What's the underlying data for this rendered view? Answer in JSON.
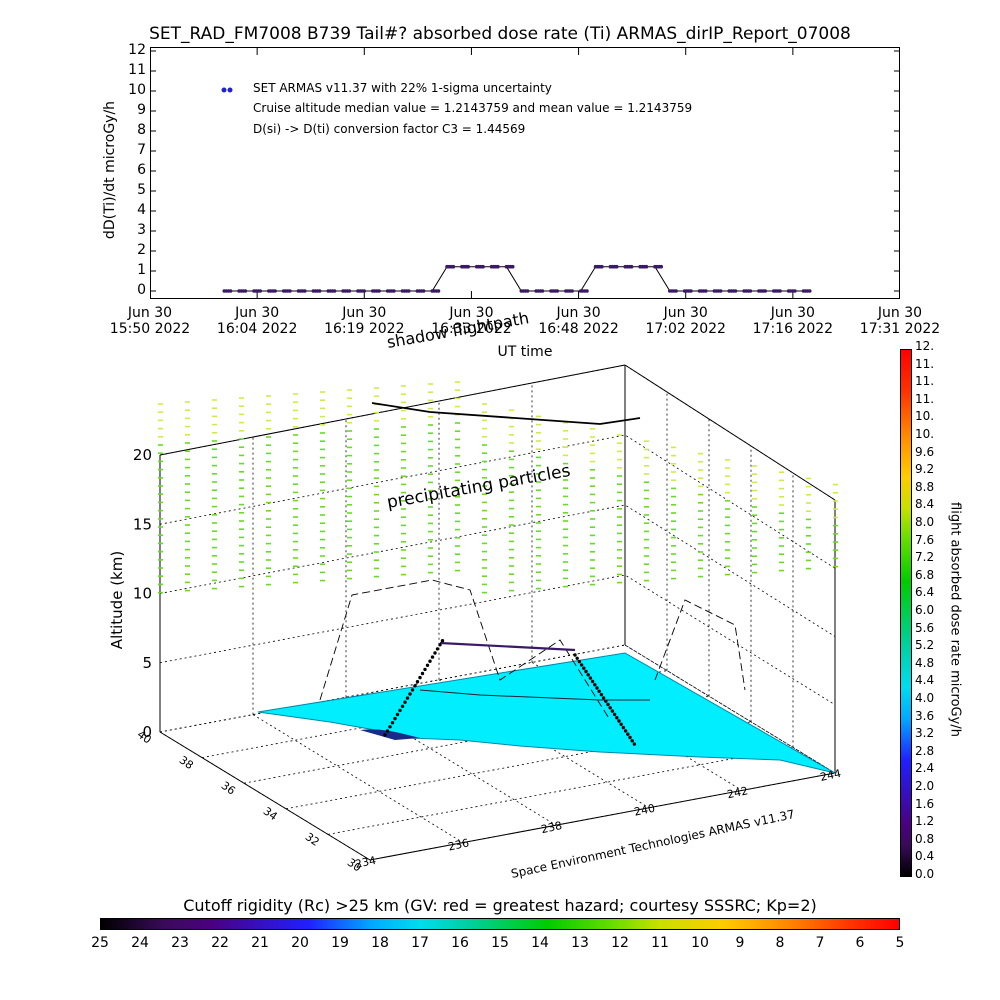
{
  "title": "SET_RAD_FM7008  B739 Tail#? absorbed dose rate (Ti) ARMAS_dirIP_Report_07008",
  "top_plot": {
    "ylabel": "dD(Ti)/dt microGy/h",
    "xlabel": "UT time",
    "yticks": [
      "0",
      "1",
      "2",
      "3",
      "4",
      "5",
      "6",
      "7",
      "8",
      "9",
      "10",
      "11",
      "12"
    ],
    "xticks": [
      {
        "line1": "Jun 30",
        "line2": "15:50 2022"
      },
      {
        "line1": "Jun 30",
        "line2": "16:04 2022"
      },
      {
        "line1": "Jun 30",
        "line2": "16:19 2022"
      },
      {
        "line1": "Jun 30",
        "line2": "16:33 2022"
      },
      {
        "line1": "Jun 30",
        "line2": "16:48 2022"
      },
      {
        "line1": "Jun 30",
        "line2": "17:02 2022"
      },
      {
        "line1": "Jun 30",
        "line2": "17:16 2022"
      },
      {
        "line1": "Jun 30",
        "line2": "17:31 2022"
      }
    ],
    "legend": {
      "series_label": "SET ARMAS v11.37 with 22% 1-sigma uncertainty",
      "line2": "Cruise altitude median value = 1.2143759 and mean value = 1.2143759",
      "line3": "D(si) -> D(ti) conversion factor C3 = 1.44569"
    },
    "series_color": "#2222cc"
  },
  "chart_data": [
    {
      "type": "line",
      "title": "SET_RAD_FM7008  B739 Tail#? absorbed dose rate (Ti) ARMAS_dirIP_Report_07008",
      "xlabel": "UT time",
      "ylabel": "dD(Ti)/dt microGy/h",
      "ylim": [
        0,
        12
      ],
      "xlim": [
        "2022-06-30 15:50",
        "2022-06-30 17:31"
      ],
      "series": [
        {
          "name": "SET ARMAS v11.37 with 22% 1-sigma uncertainty",
          "x": [
            "16:00",
            "16:02",
            "16:04",
            "16:06",
            "16:08",
            "16:10",
            "16:12",
            "16:14",
            "16:16",
            "16:18",
            "16:20",
            "16:22",
            "16:24",
            "16:26",
            "16:28",
            "16:30",
            "16:32",
            "16:34",
            "16:36",
            "16:38",
            "16:40",
            "16:42",
            "16:44",
            "16:46",
            "16:48",
            "16:50",
            "16:52",
            "16:54",
            "16:56",
            "16:58",
            "17:00",
            "17:02",
            "17:04",
            "17:06",
            "17:08",
            "17:10",
            "17:12",
            "17:14",
            "17:16",
            "17:18"
          ],
          "values": [
            0,
            0,
            0,
            0,
            0,
            0,
            0,
            0,
            0,
            0,
            0,
            0,
            0,
            0,
            0,
            1.2143759,
            1.2143759,
            1.2143759,
            1.2143759,
            1.2143759,
            0,
            0,
            0,
            0,
            0,
            1.2143759,
            1.2143759,
            1.2143759,
            1.2143759,
            1.2143759,
            0,
            0,
            0,
            0,
            0,
            0,
            0,
            0,
            0,
            0
          ]
        }
      ]
    },
    {
      "type": "scatter",
      "title": "",
      "zlabel": "Altitude (km)",
      "zticks": [
        "0",
        "5",
        "10",
        "15",
        "20"
      ],
      "lat_ticks": [
        "30",
        "32",
        "34",
        "36",
        "38",
        "40"
      ],
      "lon_ticks": [
        "234",
        "236",
        "238",
        "240",
        "242",
        "244"
      ],
      "annotations": [
        "precipitating particles",
        "shadow flightpath",
        "Space Environment Technologies ARMAS v11.37"
      ]
    }
  ],
  "right_colorbar": {
    "label": "flight absorbed dose rate microGy/h",
    "ticks": [
      "0.0",
      "0.4",
      "0.8",
      "1.2",
      "1.6",
      "2.0",
      "2.4",
      "2.8",
      "3.2",
      "3.6",
      "4.0",
      "4.4",
      "4.8",
      "5.2",
      "5.6",
      "6.0",
      "6.4",
      "6.8",
      "7.2",
      "7.6",
      "8.0",
      "8.4",
      "8.8",
      "9.2",
      "9.6",
      "10.",
      "10.",
      "11.",
      "11.",
      "11.",
      "12."
    ]
  },
  "bottom_colorbar": {
    "title": "Cutoff rigidity (Rc) >25 km (GV: red = greatest hazard; courtesy SSSRC; Kp=2)",
    "ticks": [
      "25",
      "24",
      "23",
      "22",
      "21",
      "20",
      "19",
      "18",
      "17",
      "16",
      "15",
      "14",
      "13",
      "12",
      "11",
      "10",
      "9",
      "8",
      "7",
      "6",
      "5"
    ]
  },
  "colors": {
    "surface": "#00eeff",
    "particles": "#66dd22",
    "particles_top": "#ccee44",
    "track": "#000000"
  }
}
